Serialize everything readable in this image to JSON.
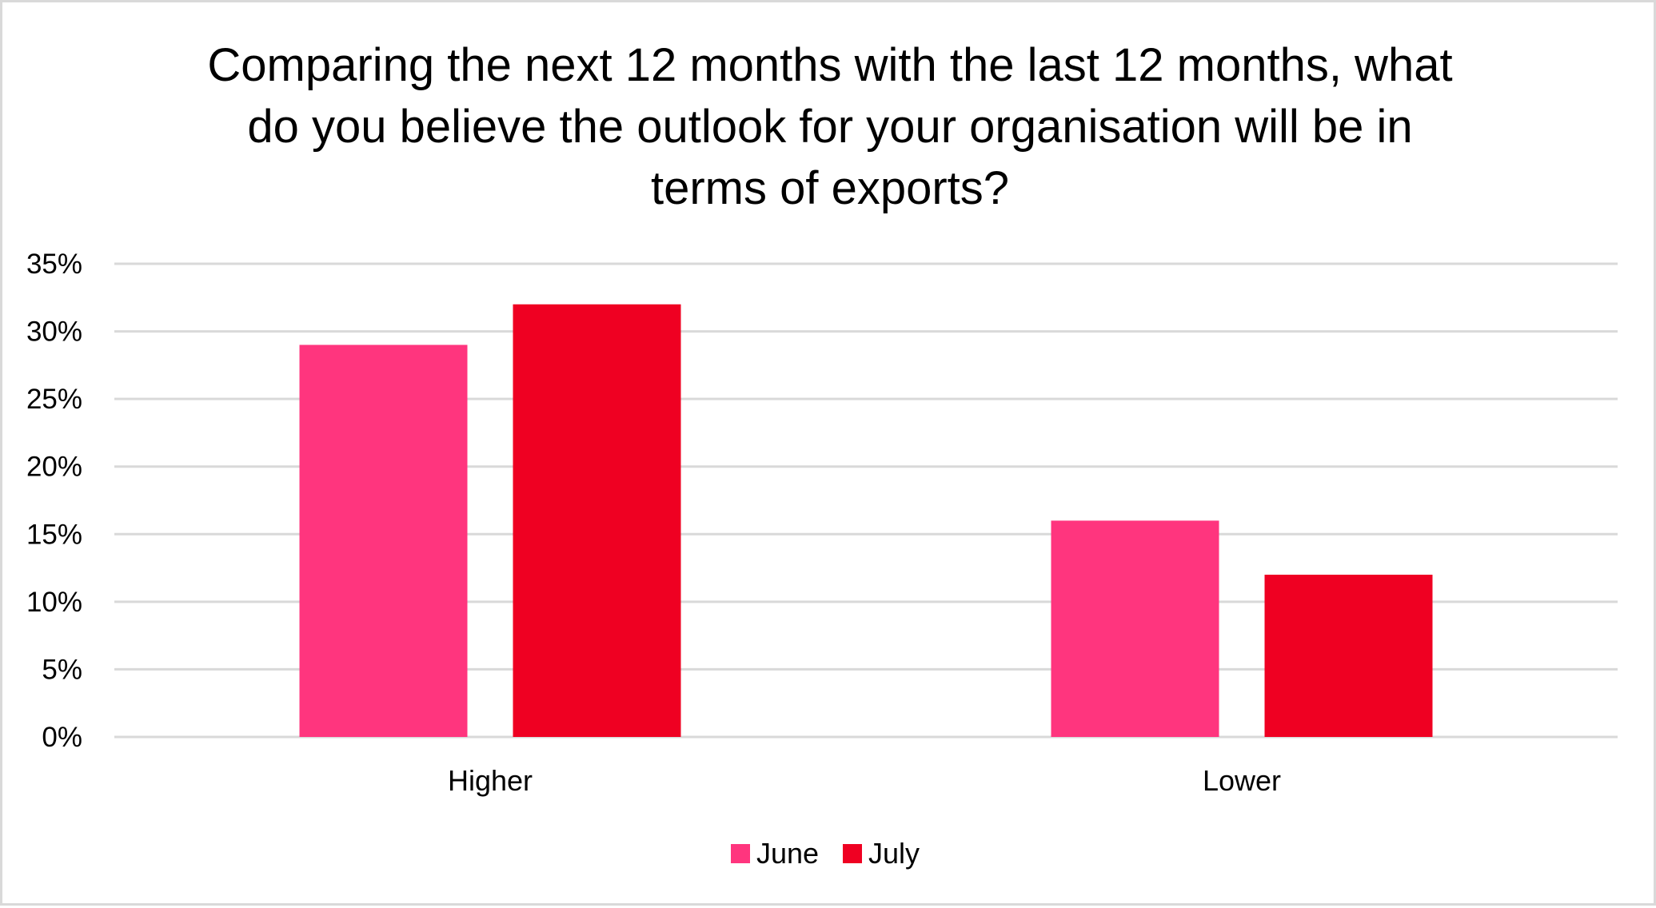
{
  "chart_data": {
    "type": "bar",
    "title_lines": [
      "Comparing the next 12 months with the last 12 months, what",
      "do you believe the outlook for your organisation will be in",
      "terms of exports?"
    ],
    "categories": [
      "Higher",
      "Lower"
    ],
    "series": [
      {
        "name": "June",
        "values": [
          0.29,
          0.16
        ],
        "color": "#FF357E"
      },
      {
        "name": "July",
        "values": [
          0.32,
          0.12
        ],
        "color": "#EF0022"
      }
    ],
    "ylim": [
      0,
      0.35
    ],
    "yticks": [
      0,
      0.05,
      0.1,
      0.15,
      0.2,
      0.25,
      0.3,
      0.35
    ],
    "ytick_labels": [
      "0%",
      "5%",
      "10%",
      "15%",
      "20%",
      "25%",
      "30%",
      "35%"
    ],
    "grid": true,
    "legend_position": "bottom",
    "gridline_color": "#D9D9D9"
  }
}
